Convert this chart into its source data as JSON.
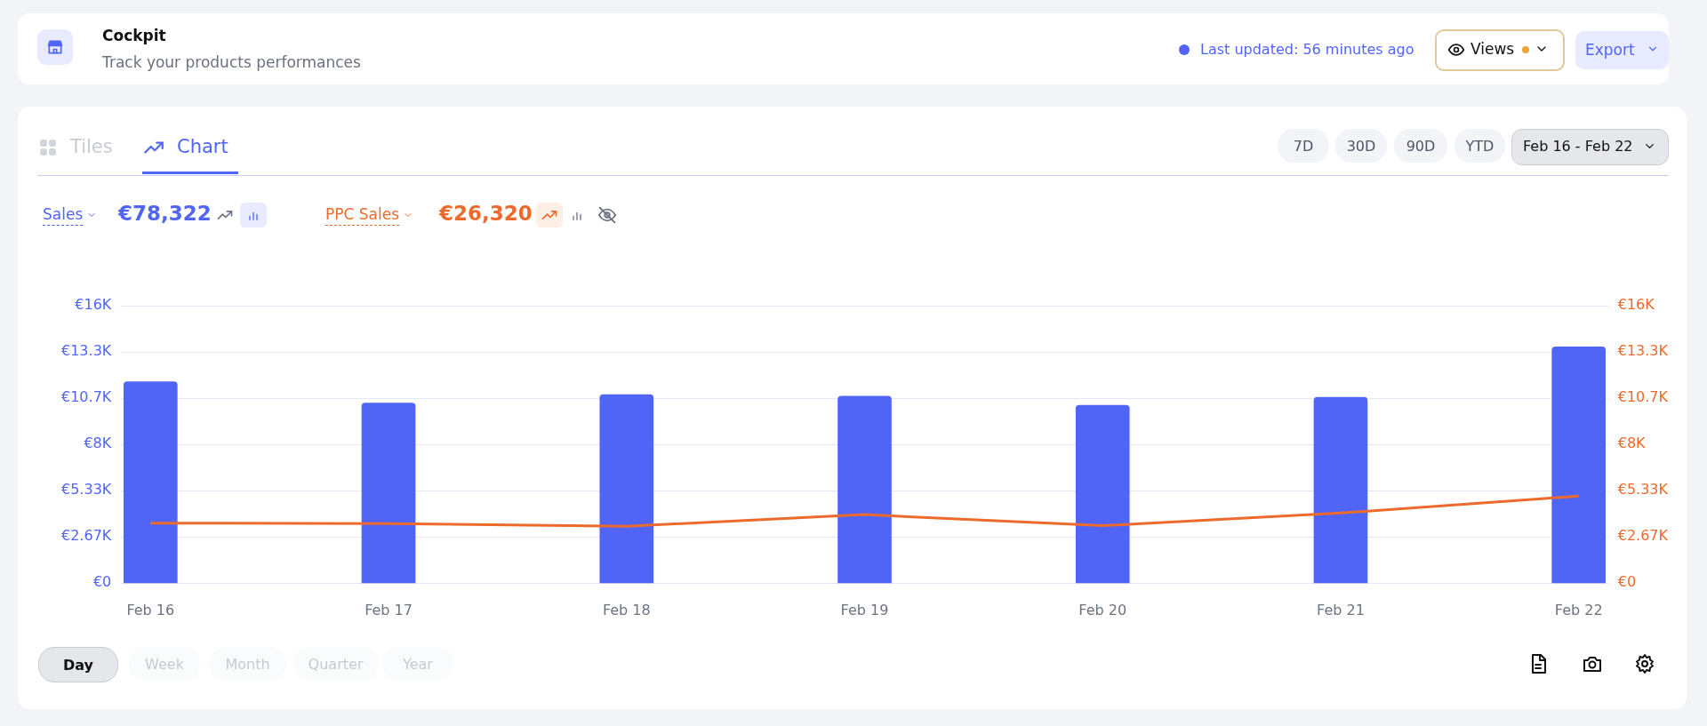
{
  "chart_data": {
    "type": "bar",
    "title": "Cockpit",
    "subtitle": "Track your products performances",
    "categories": [
      "Feb 16",
      "Feb 17",
      "Feb 18",
      "Feb 19",
      "Feb 20",
      "Feb 21",
      "Feb 22"
    ],
    "series": [
      {
        "name": "Sales",
        "color": "#5065f6",
        "values": [
          11600,
          10370,
          10850,
          10760,
          10240,
          10700,
          13600
        ]
      },
      {
        "name": "PPC Sales",
        "type": "line",
        "axis": "y2",
        "color": "#ec6a2c",
        "values": [
          3440,
          3410,
          3260,
          3930,
          3290,
          4020,
          5000
        ]
      }
    ],
    "ylim": [
      0,
      16000
    ],
    "yticks": [
      {
        "value": 0,
        "label": "€0"
      },
      {
        "value": 2667,
        "label": "€2.67K"
      },
      {
        "value": 5333,
        "label": "€5.33K"
      },
      {
        "value": 8000,
        "label": "€8K"
      },
      {
        "value": 10667,
        "label": "€10.7K"
      },
      {
        "value": 13333,
        "label": "€13.3K"
      },
      {
        "value": 16000,
        "label": "€16K"
      }
    ],
    "y2lim": [
      0,
      16000
    ],
    "y2ticks": [
      {
        "value": 0,
        "label": "€0"
      },
      {
        "value": 2667,
        "label": "€2.67K"
      },
      {
        "value": 5333,
        "label": "€5.33K"
      },
      {
        "value": 8000,
        "label": "€8K"
      },
      {
        "value": 10667,
        "label": "€10.7K"
      },
      {
        "value": 13333,
        "label": "€13.3K"
      },
      {
        "value": 16000,
        "label": "€16K"
      }
    ],
    "grid": "y",
    "legend": "top left",
    "marker": "none",
    "line_style": "solid",
    "annotations": [
      "Last updated: 56 minutes ago",
      "Views",
      "Export",
      "Tiles",
      "Chart",
      "7D",
      "30D",
      "90D",
      "YTD",
      "Feb 16 - Feb 22",
      "€78,322",
      "€26,320",
      "Day",
      "Week",
      "Month",
      "Quarter",
      "Year"
    ]
  }
}
